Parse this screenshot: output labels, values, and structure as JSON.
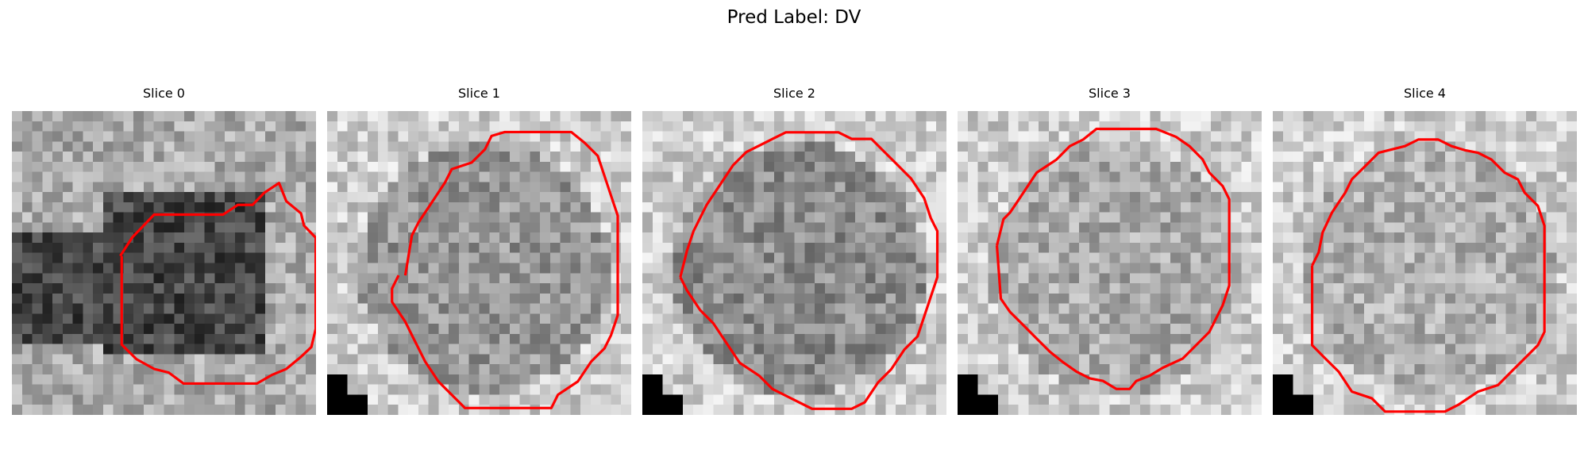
{
  "figure": {
    "title": "Pred Label: DV"
  },
  "panels": [
    {
      "title": "Slice 0"
    },
    {
      "title": "Slice 1"
    },
    {
      "title": "Slice 2"
    },
    {
      "title": "Slice 3"
    },
    {
      "title": "Slice 4"
    }
  ],
  "colors": {
    "contour": "#ff0000",
    "background": "#ffffff",
    "marker": "#000000"
  }
}
